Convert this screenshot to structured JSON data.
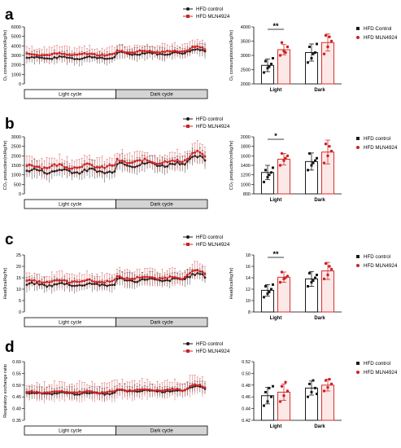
{
  "colors": {
    "control": "#1a1a1a",
    "treated": "#cc2222",
    "treated_bar_edge": "#d63030",
    "dark_box": "#d4d4d4"
  },
  "chart_data": [
    {
      "panel": "a",
      "type": "line",
      "ylabel": "O₂ consumption(ml/kg/hr)",
      "ylim": [
        0,
        6000
      ],
      "yticks": [
        0,
        1000,
        2000,
        3000,
        4000,
        5000,
        6000
      ],
      "legend": [
        "HFD control",
        "HFD MLN4924"
      ],
      "cycles": [
        "Light cycle",
        "Dark cycle"
      ],
      "n_points": 72,
      "series": [
        {
          "name": "HFD control",
          "base": 2750,
          "dark_base": 3200,
          "end_peak": 3700,
          "err": 650
        },
        {
          "name": "HFD MLN4924",
          "base": 3100,
          "dark_base": 3400,
          "end_peak": 3900,
          "err": 750
        }
      ]
    },
    {
      "panel": "a",
      "type": "bar",
      "ylabel": "O₂ consumption(ml/kg/hr)",
      "ylim": [
        2000,
        4000
      ],
      "yticks": [
        2000,
        2500,
        3000,
        3500,
        4000
      ],
      "categories": [
        "Light",
        "Dark"
      ],
      "legend": [
        "HFD Control",
        "HFD MLN4924"
      ],
      "series": [
        {
          "name": "HFD Control",
          "values": [
            2650,
            3100
          ],
          "errors": [
            220,
            300
          ],
          "points": [
            [
              2400,
              2550,
              2700,
              2800,
              2600,
              2900
            ],
            [
              2750,
              2900,
              3100,
              3300,
              3050,
              3400
            ]
          ]
        },
        {
          "name": "HFD MLN4924",
          "values": [
            3200,
            3450
          ],
          "errors": [
            180,
            300
          ],
          "points": [
            [
              3000,
              3150,
              3300,
              3450,
              3100
            ],
            [
              3050,
              3300,
              3500,
              3700,
              3650
            ]
          ]
        }
      ],
      "significance": [
        {
          "category": "Light",
          "label": "**"
        }
      ]
    },
    {
      "panel": "b",
      "type": "line",
      "ylabel": "CO₂ production(ml/kg/hr)",
      "ylim": [
        0,
        3000
      ],
      "yticks": [
        0,
        500,
        1000,
        1500,
        2000,
        2500,
        3000
      ],
      "legend": [
        "HFD control",
        "HFD MLN4924"
      ],
      "cycles": [
        "Light cycle",
        "Dark cycle"
      ],
      "n_points": 72,
      "series": [
        {
          "name": "HFD control",
          "base": 1200,
          "dark_base": 1550,
          "end_peak": 2000,
          "err": 420
        },
        {
          "name": "HFD MLN4924",
          "base": 1450,
          "dark_base": 1700,
          "end_peak": 2200,
          "err": 480
        }
      ]
    },
    {
      "panel": "b",
      "type": "bar",
      "ylabel": "CO₂ production(ml/kg/hr)",
      "ylim": [
        800,
        2000
      ],
      "yticks": [
        800,
        1000,
        1200,
        1400,
        1600,
        1800,
        2000
      ],
      "categories": [
        "Light",
        "Dark"
      ],
      "legend": [
        "HFD control",
        "HFD MLN4924"
      ],
      "series": [
        {
          "name": "HFD control",
          "values": [
            1250,
            1480
          ],
          "errors": [
            150,
            180
          ],
          "points": [
            [
              1050,
              1150,
              1250,
              1300,
              1200,
              1350
            ],
            [
              1300,
              1400,
              1500,
              1650,
              1450,
              1550
            ]
          ]
        },
        {
          "name": "HFD MLN4924",
          "values": [
            1530,
            1680
          ],
          "errors": [
            120,
            250
          ],
          "points": [
            [
              1400,
              1500,
              1600,
              1650,
              1550
            ],
            [
              1450,
              1600,
              1700,
              1850,
              1800
            ]
          ]
        }
      ],
      "significance": [
        {
          "category": "Light",
          "label": "*"
        }
      ]
    },
    {
      "panel": "c",
      "type": "line",
      "ylabel": "Heat(kcal/kg/hr)",
      "ylim": [
        0,
        25
      ],
      "yticks": [
        0,
        5,
        10,
        15,
        20,
        25
      ],
      "legend": [
        "HFD control",
        "HFD MLN4924"
      ],
      "cycles": [
        "Light cycle",
        "Dark cycle"
      ],
      "n_points": 72,
      "series": [
        {
          "name": "HFD control",
          "base": 12,
          "dark_base": 14,
          "end_peak": 17,
          "err": 3
        },
        {
          "name": "HFD MLN4924",
          "base": 13.5,
          "dark_base": 15,
          "end_peak": 18,
          "err": 3.5
        }
      ]
    },
    {
      "panel": "c",
      "type": "bar",
      "ylabel": "Heat(kcal/kg/hr)",
      "ylim": [
        8,
        18
      ],
      "yticks": [
        8,
        10,
        12,
        14,
        16,
        18
      ],
      "categories": [
        "Light",
        "Dark"
      ],
      "legend": [
        "HFD control",
        "HFD MLN4924"
      ],
      "series": [
        {
          "name": "HFD control",
          "values": [
            11.8,
            13.8
          ],
          "errors": [
            1.0,
            1.3
          ],
          "points": [
            [
              10.6,
              11.2,
              12.0,
              12.5,
              11.5,
              12.8
            ],
            [
              12.5,
              13.2,
              14.0,
              14.8,
              13.5,
              14.5
            ]
          ]
        },
        {
          "name": "HFD MLN4924",
          "values": [
            14.1,
            15.2
          ],
          "errors": [
            0.9,
            1.5
          ],
          "points": [
            [
              13.2,
              13.8,
              14.3,
              15.0,
              14.0
            ],
            [
              13.8,
              14.5,
              15.5,
              16.5,
              16.0
            ]
          ]
        }
      ],
      "significance": [
        {
          "category": "Light",
          "label": "**"
        }
      ]
    },
    {
      "panel": "d",
      "type": "line",
      "ylabel": "Respiratory exchange ratio",
      "ylim": [
        0.35,
        0.6
      ],
      "yticks": [
        0.35,
        0.4,
        0.45,
        0.5,
        0.55,
        0.6
      ],
      "legend": [
        "HFD control",
        "HFD MLN4924"
      ],
      "cycles": [
        "Light cycle",
        "Dark cycle"
      ],
      "n_points": 72,
      "series": [
        {
          "name": "HFD control",
          "base": 0.465,
          "dark_base": 0.475,
          "end_peak": 0.495,
          "err": 0.025
        },
        {
          "name": "HFD MLN4924",
          "base": 0.47,
          "dark_base": 0.48,
          "end_peak": 0.5,
          "err": 0.04
        }
      ]
    },
    {
      "panel": "d",
      "type": "bar",
      "ylabel": "",
      "ylim": [
        0.42,
        0.52
      ],
      "yticks": [
        0.42,
        0.44,
        0.46,
        0.48,
        0.5,
        0.52
      ],
      "categories": [
        "Light",
        "Dark"
      ],
      "legend": [
        "HFD control",
        "HFD MLN4924"
      ],
      "series": [
        {
          "name": "HFD control",
          "values": [
            0.462,
            0.475
          ],
          "errors": [
            0.014,
            0.012
          ],
          "points": [
            [
              0.445,
              0.452,
              0.46,
              0.468,
              0.475,
              0.478
            ],
            [
              0.46,
              0.468,
              0.475,
              0.482,
              0.488,
              0.465
            ]
          ]
        },
        {
          "name": "HFD MLN4924",
          "values": [
            0.468,
            0.48
          ],
          "errors": [
            0.014,
            0.01
          ],
          "points": [
            [
              0.452,
              0.462,
              0.47,
              0.478,
              0.485
            ],
            [
              0.47,
              0.476,
              0.482,
              0.488,
              0.49
            ]
          ]
        }
      ],
      "significance": []
    }
  ],
  "panel_labels": [
    "a",
    "b",
    "c",
    "d"
  ]
}
